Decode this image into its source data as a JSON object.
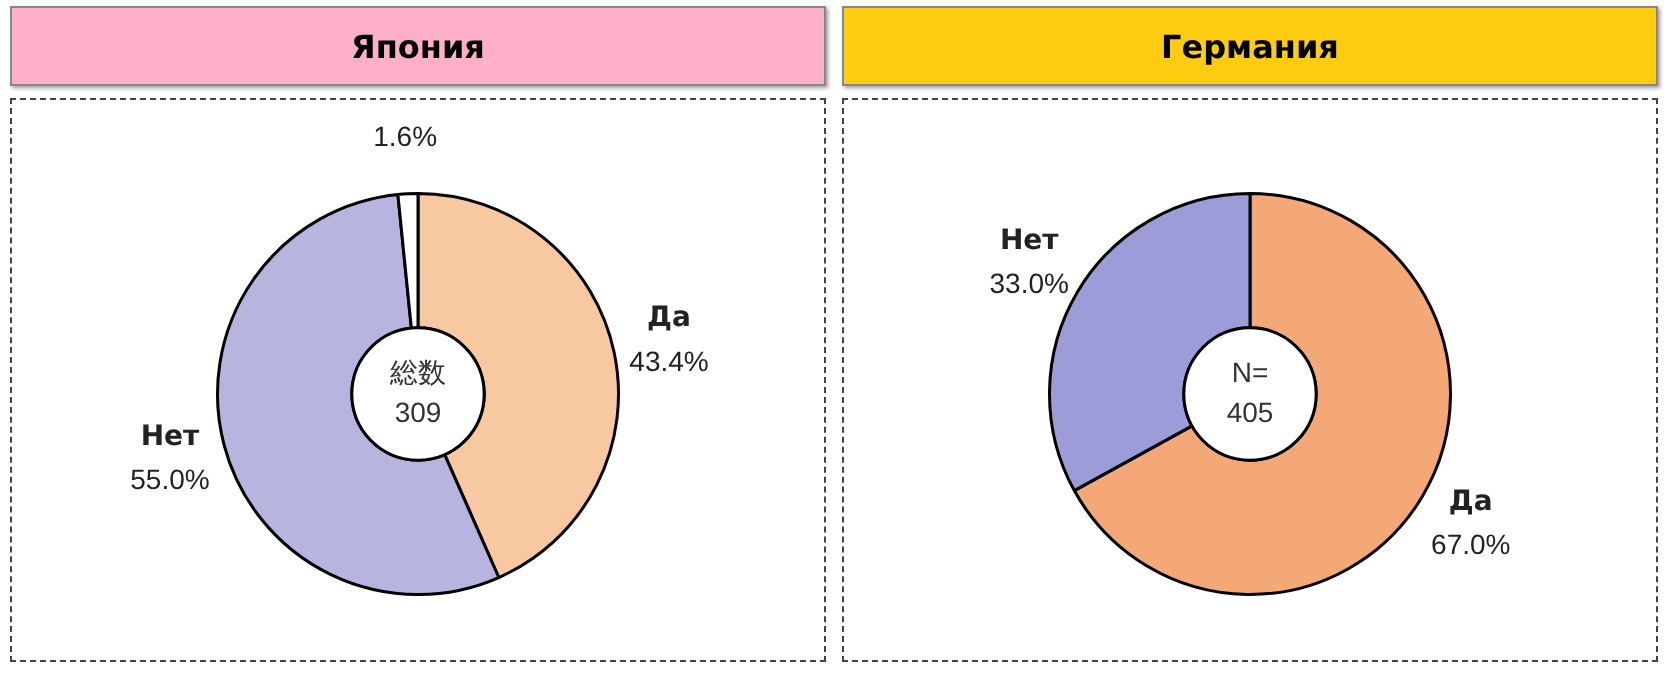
{
  "chart_data": [
    {
      "type": "donut",
      "title": "Япония",
      "categories": [
        "Да",
        "Нет",
        null
      ],
      "values": [
        43.4,
        55.0,
        1.6
      ],
      "colors": [
        "#f8c8a0",
        "#b8b4e0",
        "#ffffff"
      ],
      "value_labels": [
        "43.4%",
        "55.0%",
        "1.6%"
      ],
      "annotations": [
        "総数\n309"
      ]
    },
    {
      "type": "donut",
      "title": "Германия",
      "categories": [
        "Да",
        "Нет"
      ],
      "values": [
        67.0,
        33.0
      ],
      "colors": [
        "#f4a878",
        "#9c9cd8"
      ],
      "value_labels": [
        "67.0%",
        "33.0%"
      ],
      "annotations": [
        "N=\n405"
      ]
    }
  ]
}
